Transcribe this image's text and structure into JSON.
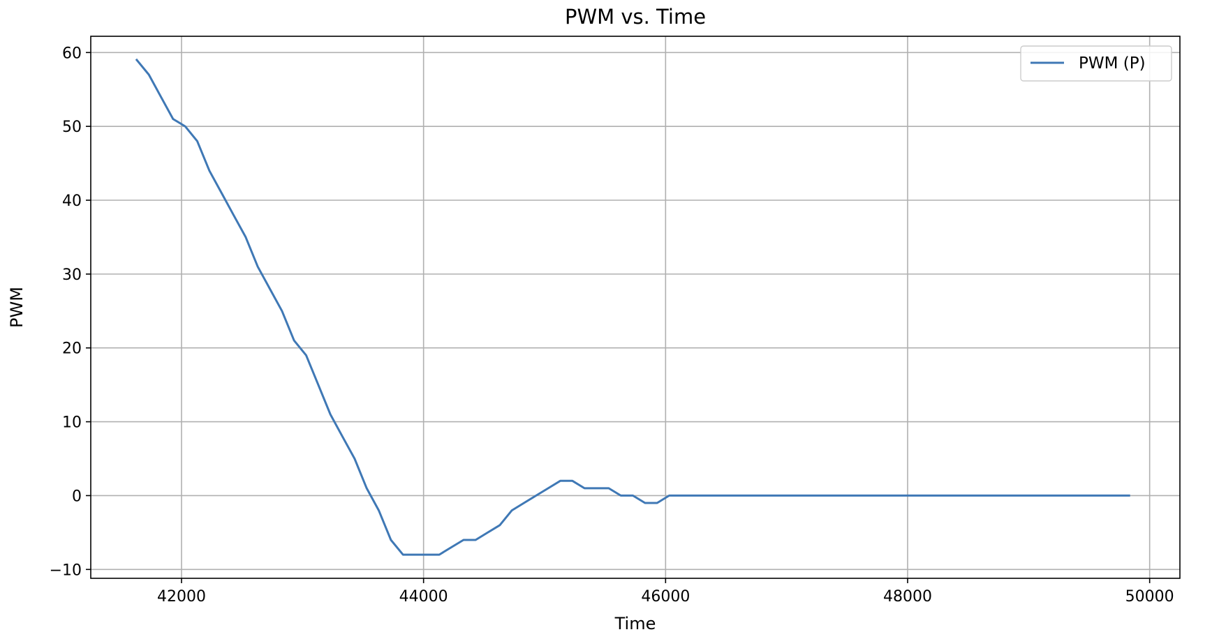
{
  "chart_data": {
    "type": "line",
    "title": "PWM vs. Time",
    "xlabel": "Time",
    "ylabel": "PWM",
    "xlim": [
      41250,
      50250
    ],
    "ylim": [
      -11.2,
      62.2
    ],
    "xticks": [
      42000,
      44000,
      46000,
      48000,
      50000
    ],
    "yticks": [
      -10,
      0,
      10,
      20,
      30,
      40,
      50,
      60
    ],
    "grid": true,
    "legend_position": "top-right",
    "series": [
      {
        "name": "PWM (P)",
        "color": "#3f78b5",
        "x": [
          41630,
          41730,
          41830,
          41930,
          42030,
          42130,
          42230,
          42330,
          42430,
          42530,
          42630,
          42730,
          42830,
          42930,
          43030,
          43130,
          43230,
          43330,
          43430,
          43530,
          43630,
          43730,
          43830,
          43930,
          44030,
          44130,
          44230,
          44330,
          44430,
          44530,
          44630,
          44730,
          44830,
          44930,
          45030,
          45130,
          45230,
          45330,
          45430,
          45530,
          45630,
          45730,
          45830,
          45930,
          46030,
          46130,
          46230,
          46330,
          49830
        ],
        "y": [
          59,
          57,
          54,
          51,
          50,
          48,
          44,
          41,
          38,
          35,
          31,
          28,
          25,
          21,
          19,
          15,
          11,
          8,
          5,
          1,
          -2,
          -6,
          -8,
          -8,
          -8,
          -8,
          -7,
          -6,
          -6,
          -5,
          -4,
          -2,
          -1,
          0,
          1,
          2,
          2,
          1,
          1,
          1,
          0,
          0,
          -1,
          -1,
          0,
          0,
          0,
          0,
          0
        ]
      }
    ]
  }
}
